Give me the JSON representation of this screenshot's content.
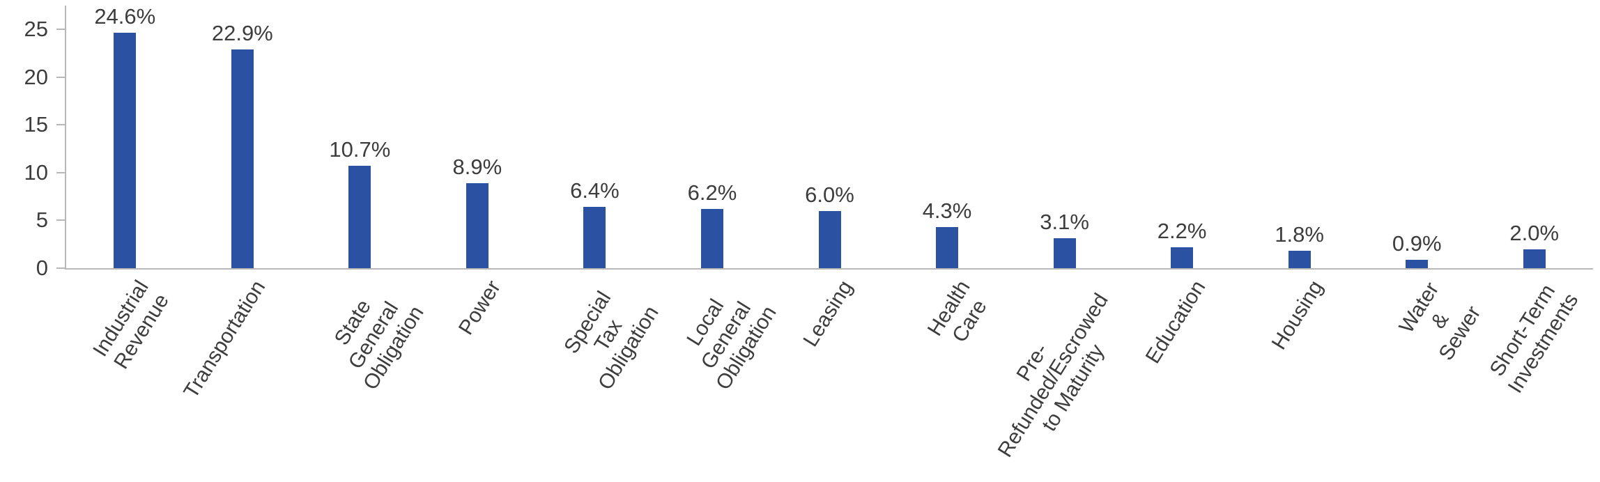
{
  "chart_data": {
    "type": "bar",
    "title": "",
    "xlabel": "",
    "ylabel": "",
    "categories": [
      "Industrial\nRevenue",
      "Transportation",
      "State General\nObligation",
      "Power",
      "Special Tax\nObligation",
      "Local General\nObligation",
      "Leasing",
      "Health Care",
      "Pre-\nRefunded/Escrowed\nto Maturity",
      "Education",
      "Housing",
      "Water & Sewer",
      "Short-Term\nInvestments"
    ],
    "values": [
      24.6,
      22.9,
      10.7,
      8.9,
      6.4,
      6.2,
      6.0,
      4.3,
      3.1,
      2.2,
      1.8,
      0.9,
      2.0
    ],
    "value_labels": [
      "24.6%",
      "22.9%",
      "10.7%",
      "8.9%",
      "6.4%",
      "6.2%",
      "6.0%",
      "4.3%",
      "3.1%",
      "2.2%",
      "1.8%",
      "0.9%",
      "2.0%"
    ],
    "ylim": [
      0,
      25
    ],
    "yticks": [
      0,
      5,
      10,
      15,
      20,
      25
    ],
    "grid": false,
    "legend": false,
    "bar_color": "#2B51A3",
    "axis_color": "#B8B8B8",
    "text_color": "#3D3D3D"
  }
}
